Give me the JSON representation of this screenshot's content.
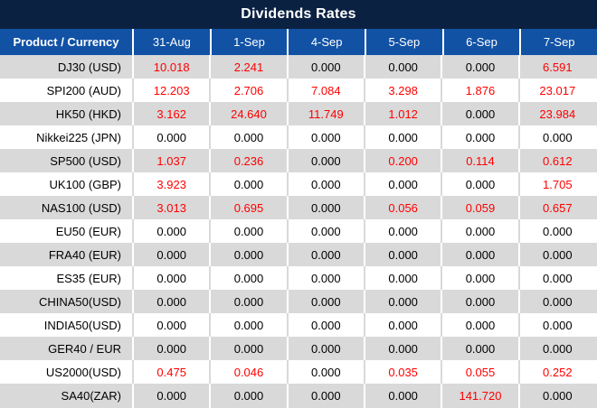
{
  "title": "Dividends Rates",
  "colors": {
    "title_bg": "#0B2142",
    "header_bg": "#1252A5",
    "header_text": "#FFFFFF",
    "stripe_gray": "#D9D9D9",
    "row_white": "#FFFFFF",
    "value_zero_text": "#000000",
    "value_nonzero_text": "#FF0000"
  },
  "chart_data": {
    "type": "table",
    "title": "Dividends Rates",
    "columns": [
      "Product / Currency",
      "31-Aug",
      "1-Sep",
      "4-Sep",
      "5-Sep",
      "6-Sep",
      "7-Sep"
    ],
    "rows": [
      {
        "product": "DJ30 (USD)",
        "values": [
          "10.018",
          "2.241",
          "0.000",
          "0.000",
          "0.000",
          "6.591"
        ]
      },
      {
        "product": "SPI200 (AUD)",
        "values": [
          "12.203",
          "2.706",
          "7.084",
          "3.298",
          "1.876",
          "23.017"
        ]
      },
      {
        "product": "HK50 (HKD)",
        "values": [
          "3.162",
          "24.640",
          "11.749",
          "1.012",
          "0.000",
          "23.984"
        ]
      },
      {
        "product": "Nikkei225 (JPN)",
        "values": [
          "0.000",
          "0.000",
          "0.000",
          "0.000",
          "0.000",
          "0.000"
        ]
      },
      {
        "product": "SP500 (USD)",
        "values": [
          "1.037",
          "0.236",
          "0.000",
          "0.200",
          "0.114",
          "0.612"
        ]
      },
      {
        "product": "UK100 (GBP)",
        "values": [
          "3.923",
          "0.000",
          "0.000",
          "0.000",
          "0.000",
          "1.705"
        ]
      },
      {
        "product": "NAS100 (USD)",
        "values": [
          "3.013",
          "0.695",
          "0.000",
          "0.056",
          "0.059",
          "0.657"
        ]
      },
      {
        "product": "EU50 (EUR)",
        "values": [
          "0.000",
          "0.000",
          "0.000",
          "0.000",
          "0.000",
          "0.000"
        ]
      },
      {
        "product": "FRA40 (EUR)",
        "values": [
          "0.000",
          "0.000",
          "0.000",
          "0.000",
          "0.000",
          "0.000"
        ]
      },
      {
        "product": "ES35 (EUR)",
        "values": [
          "0.000",
          "0.000",
          "0.000",
          "0.000",
          "0.000",
          "0.000"
        ]
      },
      {
        "product": "CHINA50(USD)",
        "values": [
          "0.000",
          "0.000",
          "0.000",
          "0.000",
          "0.000",
          "0.000"
        ]
      },
      {
        "product": "INDIA50(USD)",
        "values": [
          "0.000",
          "0.000",
          "0.000",
          "0.000",
          "0.000",
          "0.000"
        ]
      },
      {
        "product": "GER40 / EUR",
        "values": [
          "0.000",
          "0.000",
          "0.000",
          "0.000",
          "0.000",
          "0.000"
        ]
      },
      {
        "product": "US2000(USD)",
        "values": [
          "0.475",
          "0.046",
          "0.000",
          "0.035",
          "0.055",
          "0.252"
        ]
      },
      {
        "product": "SA40(ZAR)",
        "values": [
          "0.000",
          "0.000",
          "0.000",
          "0.000",
          "141.720",
          "0.000"
        ]
      }
    ]
  }
}
